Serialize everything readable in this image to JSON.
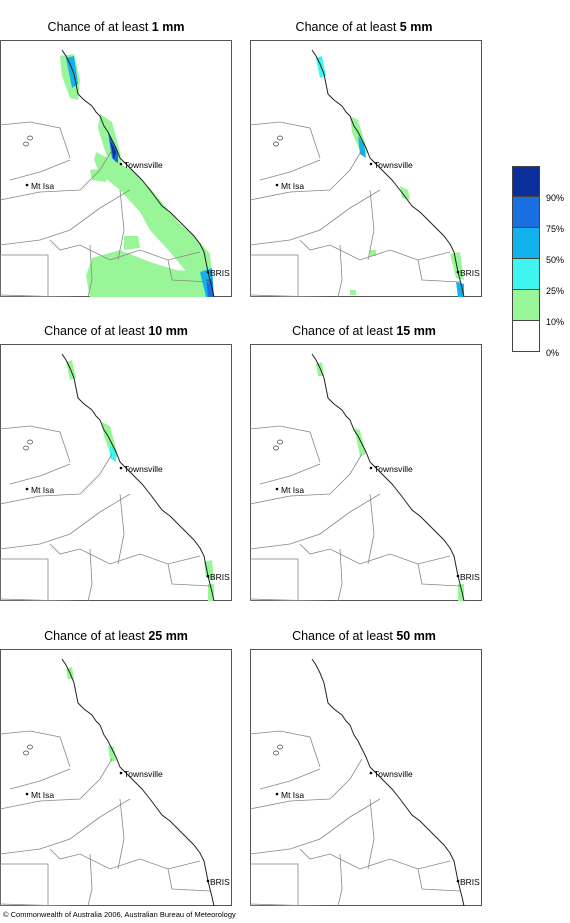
{
  "panels": [
    {
      "prefix": "Chance of at least ",
      "amount": "1 mm",
      "level": 0
    },
    {
      "prefix": "Chance of at least ",
      "amount": "5 mm",
      "level": 1
    },
    {
      "prefix": "Chance of at least ",
      "amount": "10 mm",
      "level": 2
    },
    {
      "prefix": "Chance of at least ",
      "amount": "15 mm",
      "level": 3
    },
    {
      "prefix": "Chance of at least ",
      "amount": "25 mm",
      "level": 4
    },
    {
      "prefix": "Chance of at least ",
      "amount": "50 mm",
      "level": 5
    }
  ],
  "places": {
    "townsville": "Townsville",
    "mt_isa": "Mt Isa",
    "brisbane": "BRIS"
  },
  "legend": {
    "labels": [
      "90%",
      "75%",
      "50%",
      "25%",
      "10%",
      "0%"
    ],
    "colors": [
      "#0a2f9a",
      "#1a6fe0",
      "#12b2ec",
      "#3ff5f0",
      "#98f598",
      "#ffffff"
    ]
  },
  "colors": {
    "land": "#ffffff",
    "border": "#888888",
    "coast": "#222222",
    "c10": "#98f598",
    "c25": "#3ff5f0",
    "c50": "#12b2ec",
    "c75": "#1a6fe0",
    "c90": "#0a2f9a"
  },
  "copyright": "© Commonwealth of Australia 2006, Australian Bureau of Meteorology"
}
